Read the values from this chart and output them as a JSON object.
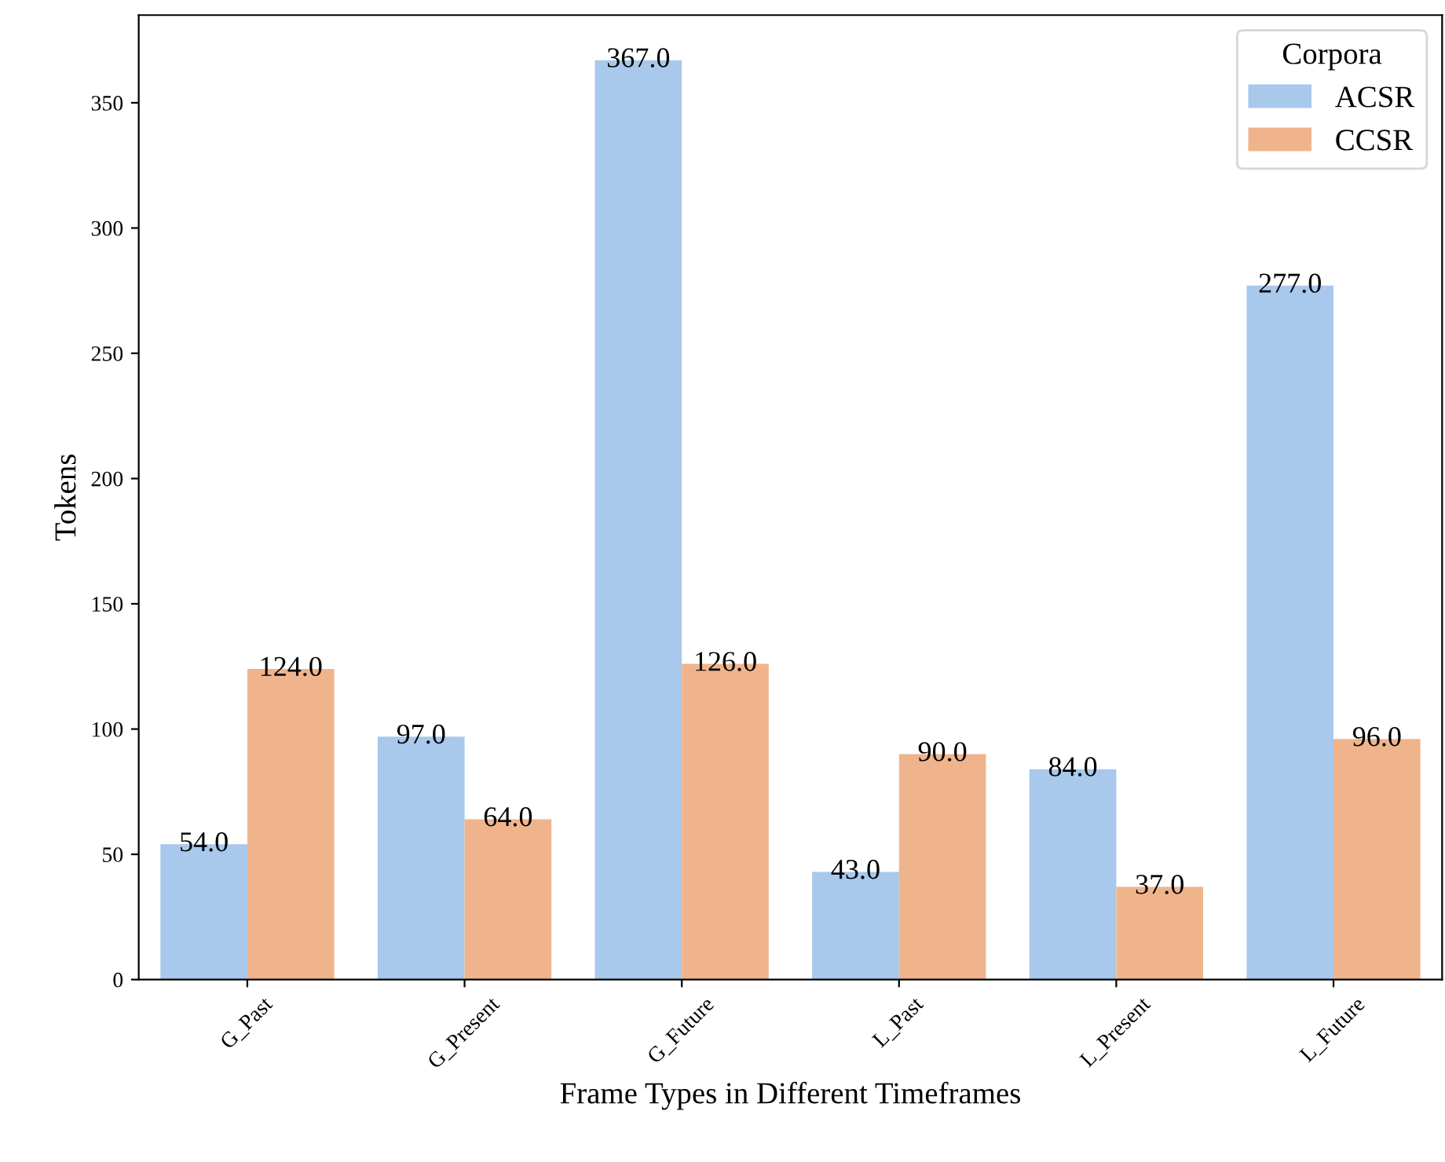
{
  "chart_data": {
    "type": "bar",
    "xlabel": "Frame Types in Different Timeframes",
    "ylabel": "Tokens",
    "legend_title": "Corpora",
    "categories": [
      "G_Past",
      "G_Present",
      "G_Future",
      "L_Past",
      "L_Present",
      "L_Future"
    ],
    "series": [
      {
        "name": "ACSR",
        "color": "#a8c8ec",
        "values": [
          54,
          97,
          367,
          43,
          84,
          277
        ],
        "value_labels": [
          "54.0",
          "97.0",
          "367.0",
          "43.0",
          "84.0",
          "277.0"
        ]
      },
      {
        "name": "CCSR",
        "color": "#f0b48c",
        "values": [
          124,
          64,
          126,
          90,
          37,
          96
        ],
        "value_labels": [
          "124.0",
          "64.0",
          "126.0",
          "90.0",
          "37.0",
          "96.0"
        ]
      }
    ],
    "ylim": [
      0,
      385
    ],
    "yticks": [
      0,
      50,
      100,
      150,
      200,
      250,
      300,
      350
    ],
    "grid": false,
    "legend": "top right"
  }
}
